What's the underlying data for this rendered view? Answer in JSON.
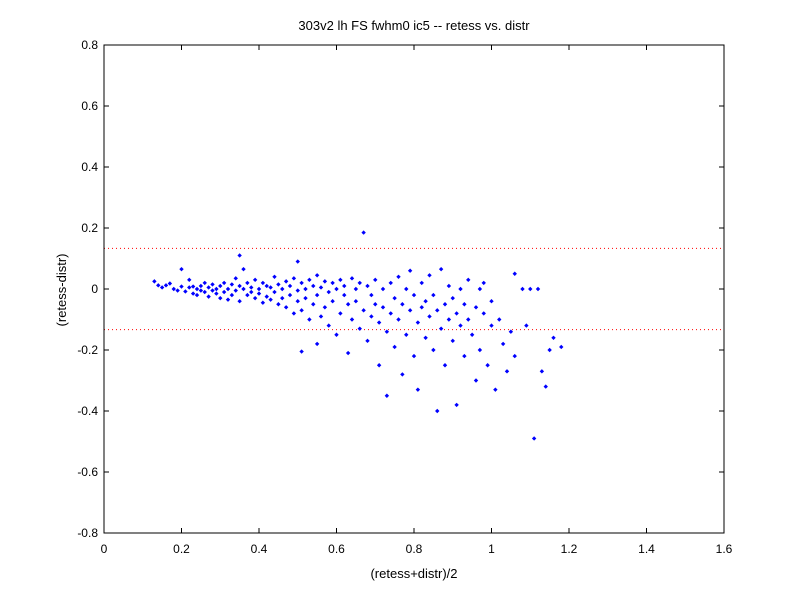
{
  "chart_data": {
    "type": "scatter",
    "title": "303v2 lh FS fwhm0 ic5 -- retess vs. distr",
    "xlabel": "(retess+distr)/2",
    "ylabel": "(retess-distr)",
    "xlim": [
      0,
      1.6
    ],
    "ylim": [
      -0.8,
      0.8
    ],
    "xticks": [
      0,
      0.2,
      0.4,
      0.6,
      0.8,
      1,
      1.2,
      1.4,
      1.6
    ],
    "xtick_labels": [
      "0",
      "0.2",
      "0.4",
      "0.6",
      "0.8",
      "1",
      "1.2",
      "1.4",
      "1.6"
    ],
    "yticks": [
      -0.8,
      -0.6,
      -0.4,
      -0.2,
      0,
      0.2,
      0.4,
      0.6,
      0.8
    ],
    "ytick_labels": [
      "-0.8",
      "-0.6",
      "-0.4",
      "-0.2",
      "0",
      "0.2",
      "0.4",
      "0.6",
      "0.8"
    ],
    "grid": false,
    "reference_lines": [
      {
        "y": 0.133,
        "style": "dotted",
        "color": "#ff0000"
      },
      {
        "y": -0.133,
        "style": "dotted",
        "color": "#ff0000"
      }
    ],
    "marker_color": "#0000ff",
    "points": [
      [
        0.13,
        0.025
      ],
      [
        0.14,
        0.012
      ],
      [
        0.15,
        0.005
      ],
      [
        0.16,
        0.012
      ],
      [
        0.17,
        0.018
      ],
      [
        0.18,
        0.0
      ],
      [
        0.19,
        -0.005
      ],
      [
        0.2,
        0.065
      ],
      [
        0.2,
        0.008
      ],
      [
        0.21,
        -0.008
      ],
      [
        0.22,
        0.005
      ],
      [
        0.22,
        0.03
      ],
      [
        0.23,
        -0.015
      ],
      [
        0.23,
        0.008
      ],
      [
        0.24,
        0.0
      ],
      [
        0.24,
        -0.02
      ],
      [
        0.25,
        0.01
      ],
      [
        0.25,
        -0.005
      ],
      [
        0.26,
        0.02
      ],
      [
        0.26,
        -0.01
      ],
      [
        0.27,
        0.005
      ],
      [
        0.27,
        -0.025
      ],
      [
        0.28,
        0.015
      ],
      [
        0.28,
        -0.005
      ],
      [
        0.29,
        0.0
      ],
      [
        0.29,
        -0.015
      ],
      [
        0.3,
        0.01
      ],
      [
        0.3,
        -0.03
      ],
      [
        0.31,
        0.02
      ],
      [
        0.31,
        -0.01
      ],
      [
        0.32,
        0.0
      ],
      [
        0.32,
        -0.035
      ],
      [
        0.33,
        0.015
      ],
      [
        0.33,
        -0.02
      ],
      [
        0.34,
        0.035
      ],
      [
        0.34,
        -0.005
      ],
      [
        0.35,
        0.11
      ],
      [
        0.35,
        0.01
      ],
      [
        0.35,
        -0.04
      ],
      [
        0.36,
        0.065
      ],
      [
        0.36,
        0.0
      ],
      [
        0.37,
        -0.02
      ],
      [
        0.37,
        0.02
      ],
      [
        0.38,
        -0.01
      ],
      [
        0.38,
        0.005
      ],
      [
        0.39,
        0.03
      ],
      [
        0.39,
        -0.03
      ],
      [
        0.4,
        0.0
      ],
      [
        0.4,
        -0.015
      ],
      [
        0.41,
        0.02
      ],
      [
        0.41,
        -0.045
      ],
      [
        0.42,
        0.01
      ],
      [
        0.42,
        -0.025
      ],
      [
        0.43,
        0.005
      ],
      [
        0.43,
        -0.035
      ],
      [
        0.44,
        0.04
      ],
      [
        0.44,
        -0.01
      ],
      [
        0.45,
        0.015
      ],
      [
        0.45,
        -0.05
      ],
      [
        0.46,
        0.0
      ],
      [
        0.46,
        -0.03
      ],
      [
        0.47,
        0.025
      ],
      [
        0.47,
        -0.06
      ],
      [
        0.48,
        0.01
      ],
      [
        0.48,
        -0.02
      ],
      [
        0.49,
        0.035
      ],
      [
        0.49,
        -0.08
      ],
      [
        0.5,
        0.09
      ],
      [
        0.5,
        -0.005
      ],
      [
        0.5,
        -0.04
      ],
      [
        0.51,
        0.02
      ],
      [
        0.51,
        -0.07
      ],
      [
        0.51,
        -0.205
      ],
      [
        0.52,
        0.0
      ],
      [
        0.52,
        -0.03
      ],
      [
        0.53,
        0.03
      ],
      [
        0.53,
        -0.1
      ],
      [
        0.54,
        0.01
      ],
      [
        0.54,
        -0.05
      ],
      [
        0.55,
        0.045
      ],
      [
        0.55,
        -0.02
      ],
      [
        0.55,
        -0.18
      ],
      [
        0.56,
        0.005
      ],
      [
        0.56,
        -0.09
      ],
      [
        0.57,
        0.025
      ],
      [
        0.57,
        -0.06
      ],
      [
        0.58,
        -0.01
      ],
      [
        0.58,
        -0.12
      ],
      [
        0.59,
        0.02
      ],
      [
        0.59,
        -0.04
      ],
      [
        0.6,
        0.0
      ],
      [
        0.6,
        -0.15
      ],
      [
        0.61,
        0.03
      ],
      [
        0.61,
        -0.08
      ],
      [
        0.62,
        0.01
      ],
      [
        0.62,
        -0.02
      ],
      [
        0.63,
        -0.05
      ],
      [
        0.63,
        -0.21
      ],
      [
        0.64,
        0.035
      ],
      [
        0.64,
        -0.1
      ],
      [
        0.65,
        0.0
      ],
      [
        0.65,
        -0.04
      ],
      [
        0.66,
        0.02
      ],
      [
        0.66,
        -0.13
      ],
      [
        0.67,
        0.185
      ],
      [
        0.67,
        -0.07
      ],
      [
        0.68,
        0.01
      ],
      [
        0.68,
        -0.17
      ],
      [
        0.69,
        -0.02
      ],
      [
        0.69,
        -0.09
      ],
      [
        0.7,
        0.03
      ],
      [
        0.7,
        -0.05
      ],
      [
        0.71,
        -0.11
      ],
      [
        0.71,
        -0.25
      ],
      [
        0.72,
        0.0
      ],
      [
        0.72,
        -0.06
      ],
      [
        0.73,
        -0.35
      ],
      [
        0.73,
        -0.14
      ],
      [
        0.74,
        0.02
      ],
      [
        0.74,
        -0.08
      ],
      [
        0.75,
        -0.03
      ],
      [
        0.75,
        -0.19
      ],
      [
        0.76,
        0.04
      ],
      [
        0.76,
        -0.1
      ],
      [
        0.77,
        -0.05
      ],
      [
        0.77,
        -0.28
      ],
      [
        0.78,
        0.0
      ],
      [
        0.78,
        -0.15
      ],
      [
        0.79,
        0.06
      ],
      [
        0.79,
        -0.07
      ],
      [
        0.8,
        -0.02
      ],
      [
        0.8,
        -0.22
      ],
      [
        0.81,
        -0.11
      ],
      [
        0.81,
        -0.33
      ],
      [
        0.82,
        0.02
      ],
      [
        0.82,
        -0.06
      ],
      [
        0.83,
        -0.16
      ],
      [
        0.83,
        -0.04
      ],
      [
        0.84,
        0.045
      ],
      [
        0.84,
        -0.09
      ],
      [
        0.85,
        -0.2
      ],
      [
        0.85,
        -0.02
      ],
      [
        0.86,
        -0.4
      ],
      [
        0.86,
        -0.07
      ],
      [
        0.87,
        0.065
      ],
      [
        0.87,
        -0.13
      ],
      [
        0.88,
        -0.05
      ],
      [
        0.88,
        -0.25
      ],
      [
        0.89,
        0.01
      ],
      [
        0.89,
        -0.1
      ],
      [
        0.9,
        -0.03
      ],
      [
        0.9,
        -0.17
      ],
      [
        0.91,
        -0.38
      ],
      [
        0.91,
        -0.08
      ],
      [
        0.92,
        0.0
      ],
      [
        0.92,
        -0.12
      ],
      [
        0.93,
        -0.22
      ],
      [
        0.93,
        -0.05
      ],
      [
        0.94,
        0.03
      ],
      [
        0.94,
        -0.1
      ],
      [
        0.95,
        -0.15
      ],
      [
        0.96,
        -0.06
      ],
      [
        0.96,
        -0.3
      ],
      [
        0.97,
        0.0
      ],
      [
        0.97,
        -0.2
      ],
      [
        0.98,
        -0.08
      ],
      [
        0.98,
        0.02
      ],
      [
        0.99,
        -0.25
      ],
      [
        1.0,
        -0.12
      ],
      [
        1.0,
        -0.04
      ],
      [
        1.01,
        -0.33
      ],
      [
        1.02,
        -0.1
      ],
      [
        1.03,
        -0.18
      ],
      [
        1.04,
        -0.27
      ],
      [
        1.05,
        -0.14
      ],
      [
        1.06,
        0.05
      ],
      [
        1.06,
        -0.22
      ],
      [
        1.08,
        0.0
      ],
      [
        1.09,
        -0.12
      ],
      [
        1.1,
        0.0
      ],
      [
        1.11,
        -0.49
      ],
      [
        1.12,
        0.0
      ],
      [
        1.13,
        -0.27
      ],
      [
        1.14,
        -0.32
      ],
      [
        1.15,
        -0.2
      ],
      [
        1.16,
        -0.16
      ],
      [
        1.18,
        -0.19
      ]
    ]
  }
}
